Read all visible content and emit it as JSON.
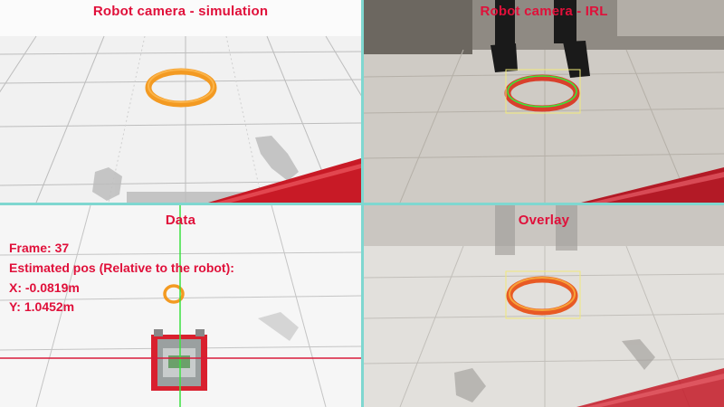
{
  "panels": {
    "simulation": {
      "title": "Robot camera - simulation"
    },
    "irl": {
      "title": "Robot camera - IRL"
    },
    "data": {
      "title": "Data"
    },
    "overlay": {
      "title": "Overlay"
    }
  },
  "readout": {
    "frame": "Frame: 37",
    "estimated": "Estimated pos (Relative to the robot):",
    "x": "X: -0.0819m",
    "y": "Y: 1.0452m"
  },
  "colors": {
    "label": "#e0103a",
    "divider": "#7fd7d0",
    "ring": "#f39a22",
    "ring_irl": "#e0402a",
    "bbox": "#f0e97a",
    "ellipse_fit": "#38e83a",
    "crosshair_v": "#3ce040",
    "crosshair_h": "#d81a3a",
    "robot": "#d9202e"
  }
}
